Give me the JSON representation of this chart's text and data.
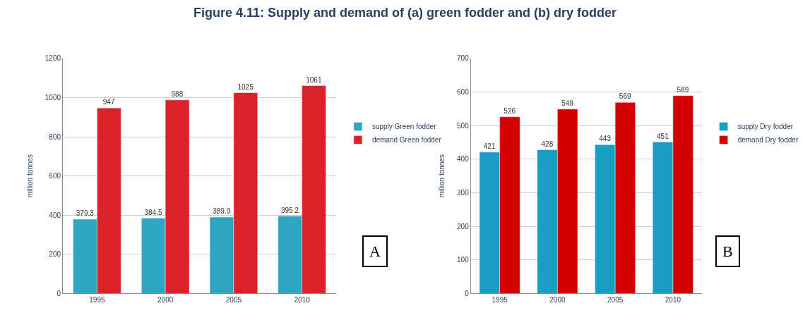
{
  "chart_data": [
    {
      "type": "bar",
      "title": "Figure 4.11: Supply and demand of (a) green fodder and (b) dry fodder",
      "ylabel": "million tonnes",
      "categories": [
        "1995",
        "2000",
        "2005",
        "2010"
      ],
      "series": [
        {
          "name": "supply Green fodder",
          "color": "#2ea6c2",
          "values": [
            379.3,
            384.5,
            389.9,
            395.2
          ]
        },
        {
          "name": "demand Green fodder",
          "color": "#dc2229",
          "values": [
            947,
            988,
            1025,
            1061
          ]
        }
      ],
      "ylim": [
        0,
        1200
      ],
      "yticks": [
        0,
        200,
        400,
        600,
        800,
        1000,
        1200
      ],
      "grid": "y",
      "legend": "right",
      "data_labels": true,
      "annotations": [
        "A"
      ]
    },
    {
      "type": "bar",
      "ylabel": "million tonnes",
      "categories": [
        "1995",
        "2000",
        "2005",
        "2010"
      ],
      "series": [
        {
          "name": "supply Dry fodder",
          "color": "#1a9cc4",
          "values": [
            421,
            428,
            443,
            451
          ]
        },
        {
          "name": "demand Dry fodder",
          "color": "#d40000",
          "values": [
            526,
            549,
            569,
            589
          ]
        }
      ],
      "ylim": [
        0,
        700
      ],
      "yticks": [
        0,
        100,
        200,
        300,
        400,
        500,
        600,
        700
      ],
      "grid": "y",
      "legend": "right",
      "data_labels": true,
      "annotations": [
        "B"
      ]
    }
  ]
}
